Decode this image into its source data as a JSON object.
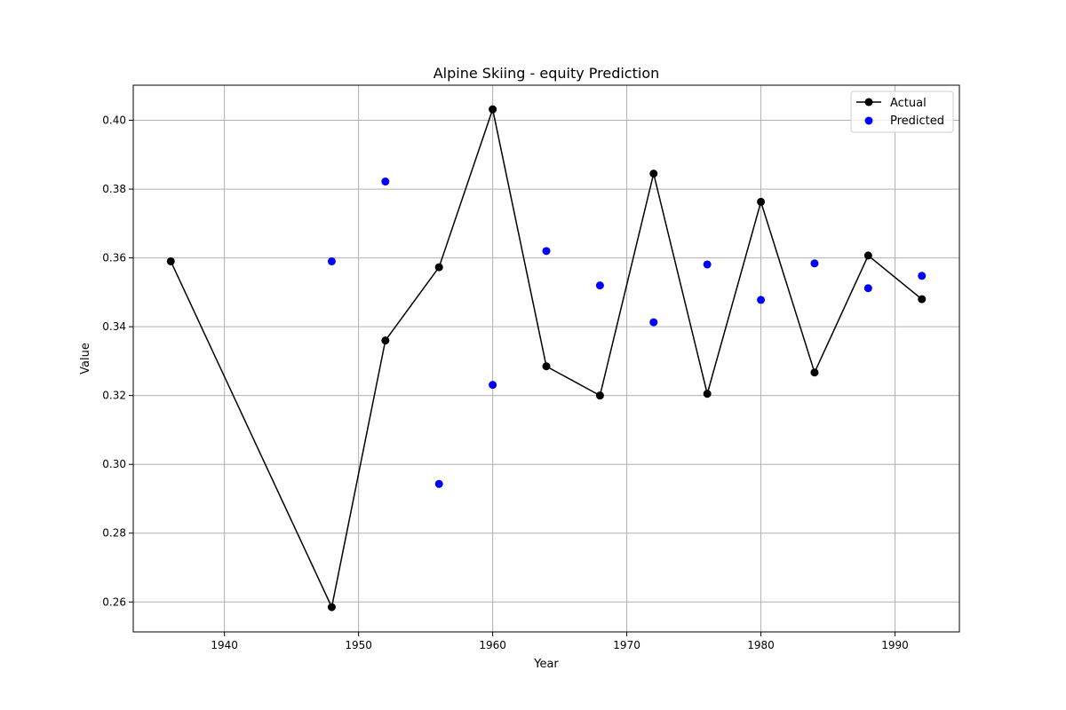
{
  "chart_data": {
    "type": "line",
    "title": "Alpine Skiing - equity Prediction",
    "xlabel": "Year",
    "ylabel": "Value",
    "xlim": [
      1933.2,
      1994.8
    ],
    "ylim": [
      0.2513,
      0.4102
    ],
    "xticks": [
      1940,
      1950,
      1960,
      1970,
      1980,
      1990
    ],
    "yticks": [
      0.26,
      0.28,
      0.3,
      0.32,
      0.34,
      0.36,
      0.38,
      0.4
    ],
    "xtick_labels": [
      "1940",
      "1950",
      "1960",
      "1970",
      "1980",
      "1990"
    ],
    "ytick_labels": [
      "0.26",
      "0.28",
      "0.30",
      "0.32",
      "0.34",
      "0.36",
      "0.38",
      "0.40"
    ],
    "grid": true,
    "legend_position": "top-right",
    "series": [
      {
        "name": "Actual",
        "style": "line-marker",
        "color": "#000000",
        "x": [
          1936,
          1948,
          1952,
          1956,
          1960,
          1964,
          1968,
          1972,
          1976,
          1980,
          1984,
          1988,
          1992
        ],
        "y": [
          0.359,
          0.2585,
          0.336,
          0.3573,
          0.4032,
          0.3285,
          0.32,
          0.3845,
          0.3205,
          0.3763,
          0.3267,
          0.3607,
          0.348
        ]
      },
      {
        "name": "Predicted",
        "style": "scatter",
        "color": "#0000ff",
        "x": [
          1948,
          1952,
          1956,
          1960,
          1964,
          1968,
          1972,
          1976,
          1980,
          1984,
          1988,
          1992
        ],
        "y": [
          0.359,
          0.3822,
          0.2943,
          0.3231,
          0.362,
          0.352,
          0.3413,
          0.3581,
          0.3478,
          0.3584,
          0.3512,
          0.3548
        ]
      }
    ]
  }
}
